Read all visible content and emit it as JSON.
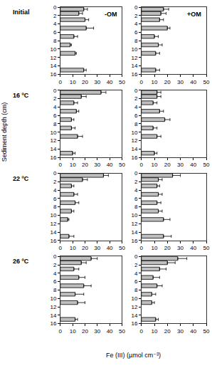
{
  "chart_data": {
    "type": "bar",
    "orientation": "horizontal",
    "color": "#bfbfbf",
    "xlabel": "Fe (III) (µmol cm⁻³)",
    "ylabel": "Sediment depth (cm)",
    "xlim": [
      0,
      50
    ],
    "xticks": [
      0,
      10,
      20,
      30,
      40,
      50
    ],
    "ylim": [
      0,
      16
    ],
    "yticks": [
      0,
      2,
      4,
      6,
      8,
      10,
      12,
      14,
      16
    ],
    "depths": [
      0.5,
      1.5,
      3,
      5,
      7,
      9,
      11,
      15
    ],
    "columns": [
      "-OM",
      "+OM"
    ],
    "rows": [
      {
        "label": "Initial",
        "panels": [
          {
            "values": [
              19,
              15,
              20,
              21,
              11,
              8,
              12,
              19
            ],
            "errors": [
              3,
              3,
              3,
              6,
              3,
              1,
              1,
              2
            ]
          },
          {
            "values": [
              17,
              15,
              14,
              20,
              10,
              13,
              11,
              11
            ],
            "errors": [
              4,
              4,
              3,
              2,
              3,
              3,
              3,
              3
            ]
          }
        ]
      },
      {
        "label": "16 ºC",
        "panels": [
          {
            "values": [
              33,
              17,
              11,
              13,
              9,
              9,
              14,
              10
            ],
            "errors": [
              4,
              4,
              3,
              2,
              2,
              3,
              4,
              2
            ]
          },
          {
            "values": [
              12,
              12,
              9,
              14,
              18,
              9,
              12,
              10
            ],
            "errors": [
              3,
              3,
              3,
              3,
              4,
              3,
              3,
              2
            ]
          }
        ]
      },
      {
        "label": "22 ºC",
        "panels": [
          {
            "values": [
              35,
              18,
              9,
              11,
              12,
              9,
              6,
              7
            ],
            "errors": [
              4,
              4,
              2,
              3,
              3,
              2,
              1,
              4
            ]
          },
          {
            "values": [
              24,
              13,
              12,
              13,
              12,
              13,
              17,
              17
            ],
            "errors": [
              6,
              3,
              2,
              3,
              3,
              3,
              5,
              6
            ]
          }
        ]
      },
      {
        "label": "26 ºC",
        "panels": [
          {
            "values": [
              25,
              17,
              11,
              15,
              19,
              12,
              14,
              12
            ],
            "errors": [
              5,
              4,
              4,
              5,
              6,
              7,
              6,
              2
            ]
          },
          {
            "values": [
              28,
              20,
              14,
              9,
              12,
              8,
              8,
              11
            ],
            "errors": [
              7,
              6,
              5,
              5,
              4,
              3,
              2,
              2
            ]
          }
        ]
      }
    ]
  }
}
